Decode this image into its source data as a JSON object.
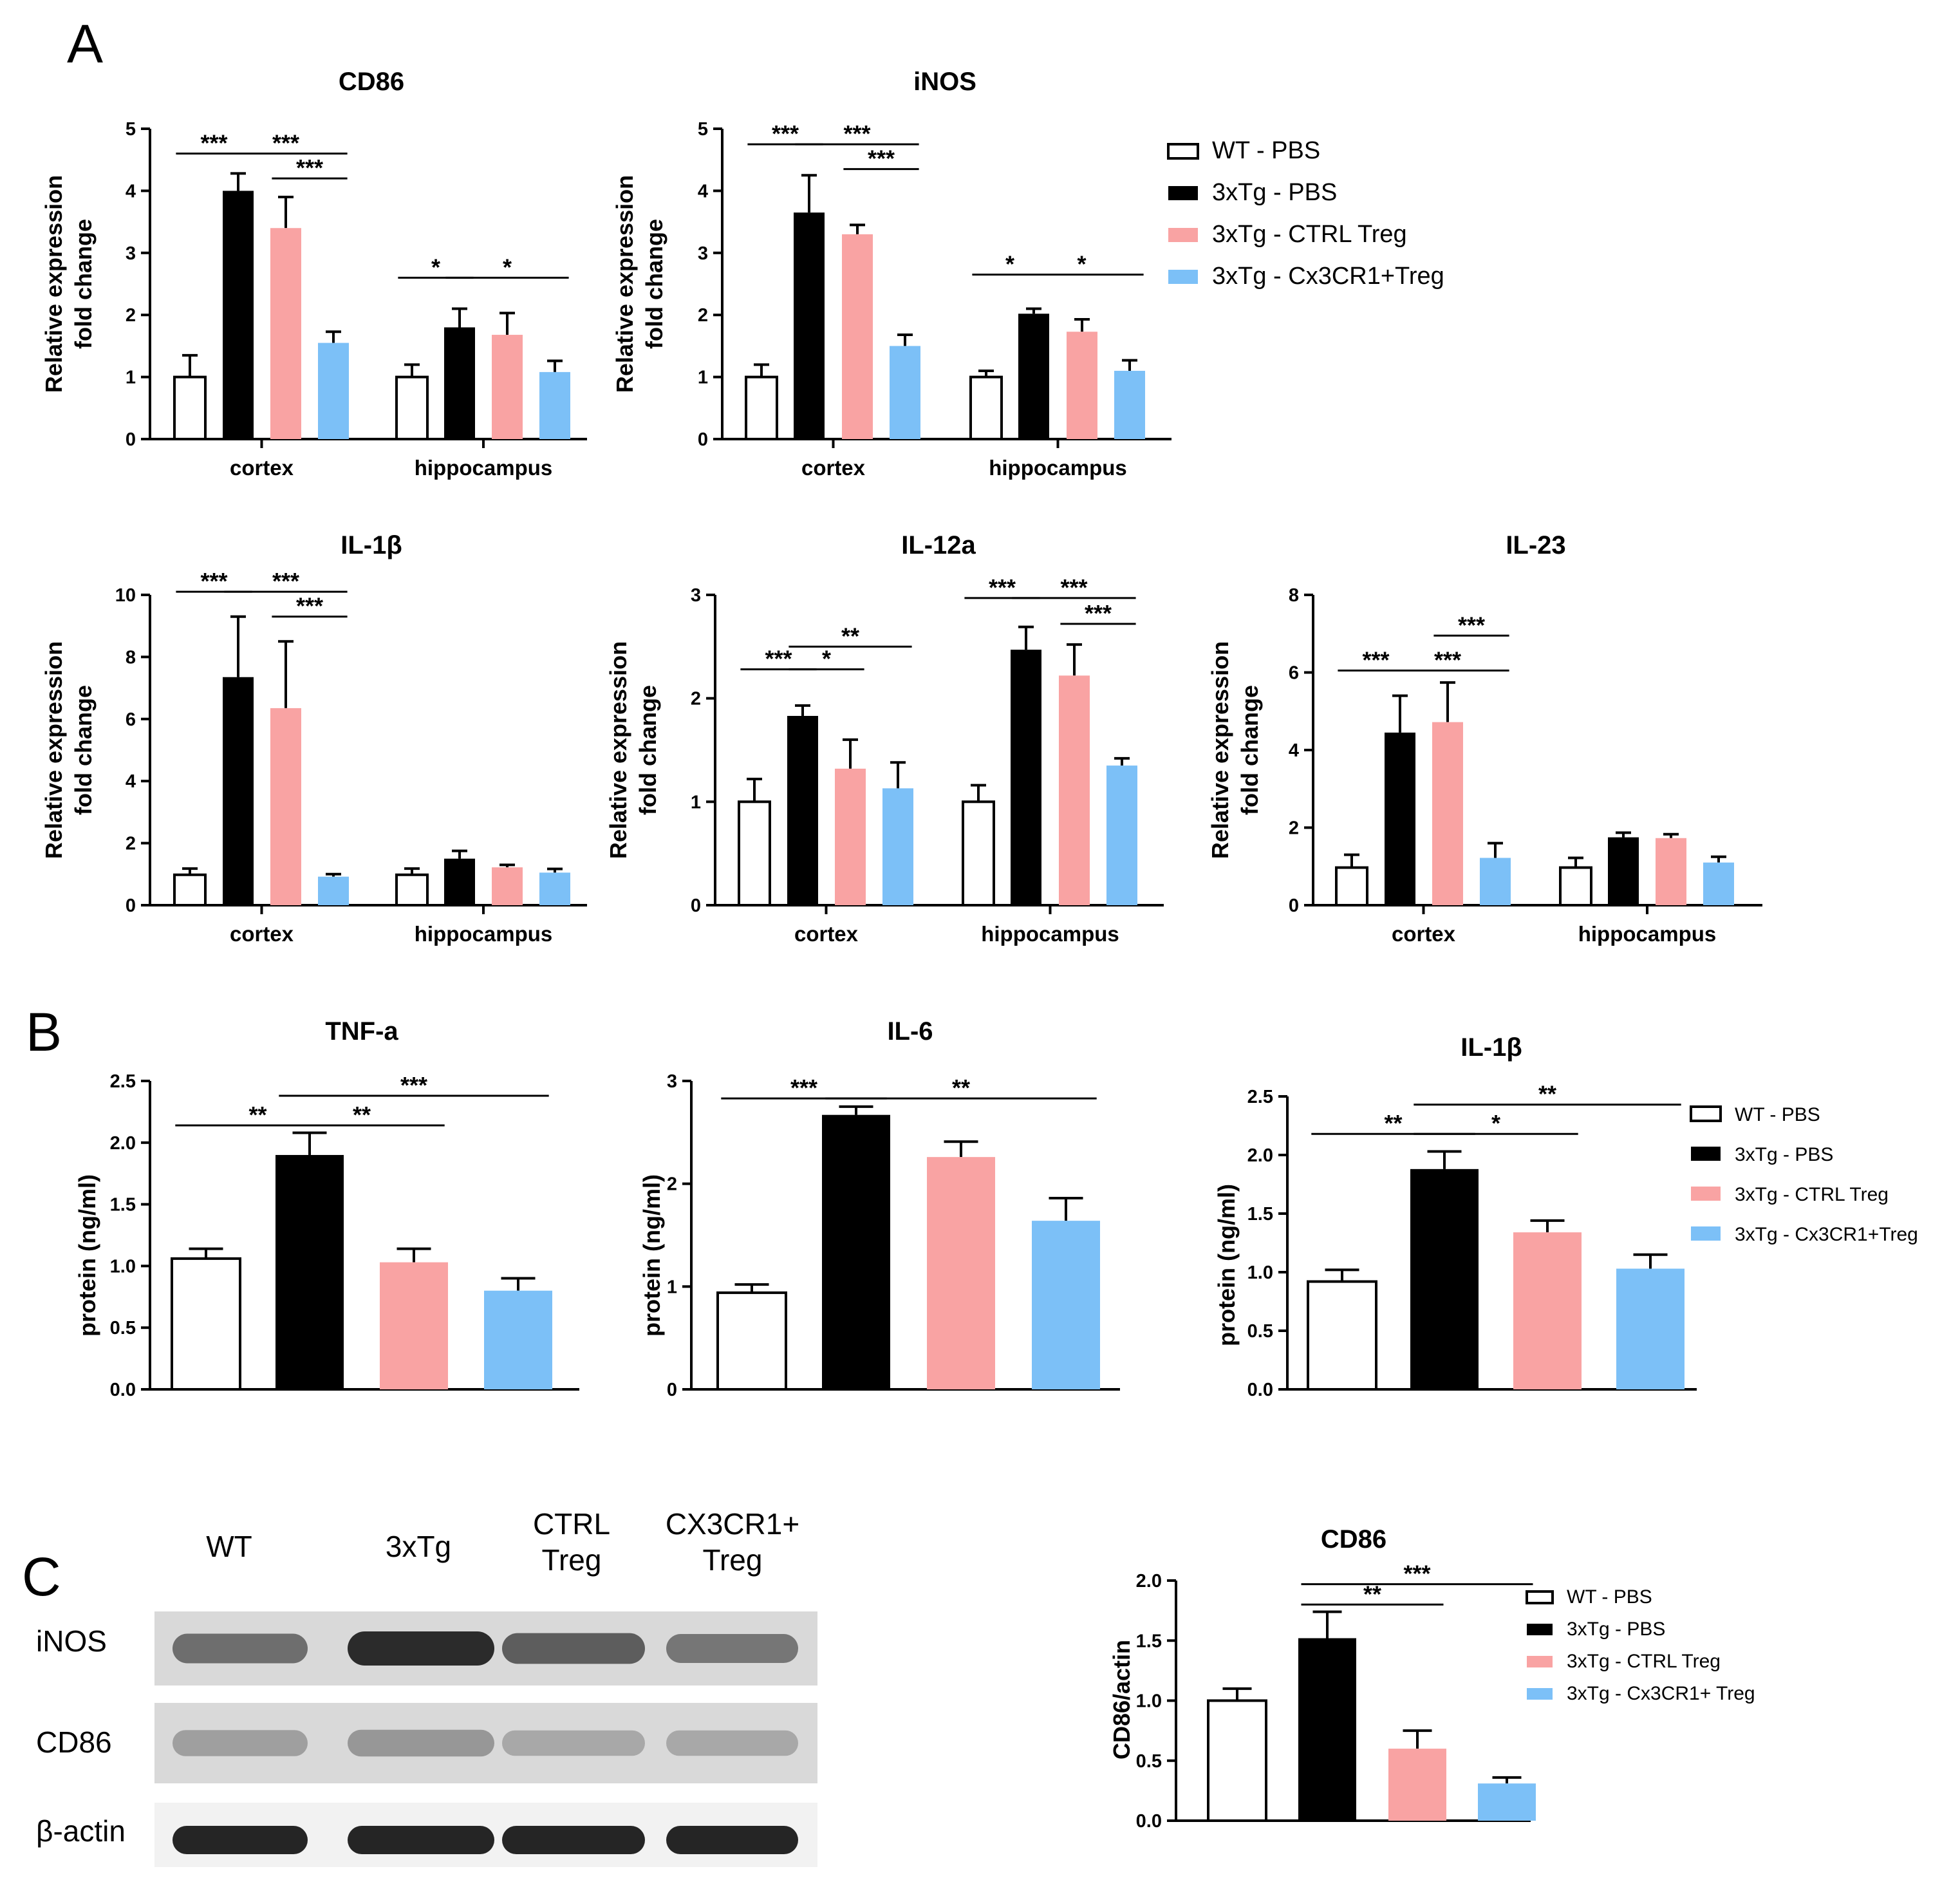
{
  "panels": [
    "A",
    "B",
    "C"
  ],
  "legend": {
    "entries": [
      "WT - PBS",
      "3xTg - PBS",
      "3xTg - CTRL Treg",
      "3xTg - Cx3CR1+Treg"
    ],
    "entries_c": [
      "WT - PBS",
      "3xTg - PBS",
      "3xTg - CTRL Treg",
      "3xTg - Cx3CR1+ Treg"
    ],
    "colors": [
      "#ffffff",
      "#000000",
      "#f9a3a3",
      "#7cc0f7"
    ]
  },
  "blot": {
    "lanes": [
      [
        "WT"
      ],
      [
        "3xTg"
      ],
      [
        "CTRL",
        "Treg"
      ],
      [
        "CX3CR1+",
        "Treg"
      ]
    ],
    "rows": [
      "iNOS",
      "CD86",
      "β-actin"
    ],
    "intensity": [
      [
        0.55,
        0.95,
        0.65,
        0.5
      ],
      [
        0.25,
        0.3,
        0.2,
        0.2
      ],
      [
        1.0,
        1.0,
        1.0,
        1.0
      ]
    ]
  },
  "chart_data": [
    {
      "id": "A_CD86",
      "type": "bar",
      "title": "CD86",
      "ylabel": [
        "Relative expression",
        "fold change"
      ],
      "ylim": [
        0,
        5
      ],
      "yticks": [
        "0",
        "1",
        "2",
        "3",
        "4",
        "5"
      ],
      "categories": [
        "cortex",
        "hippocampus"
      ],
      "series": [
        {
          "name": "WT - PBS",
          "values": [
            1.0,
            1.0
          ],
          "errors": [
            0.35,
            0.2
          ]
        },
        {
          "name": "3xTg - PBS",
          "values": [
            4.0,
            1.8
          ],
          "errors": [
            0.28,
            0.3
          ]
        },
        {
          "name": "3xTg - CTRL Treg",
          "values": [
            3.4,
            1.68
          ],
          "errors": [
            0.5,
            0.35
          ]
        },
        {
          "name": "3xTg - Cx3CR1+Treg",
          "values": [
            1.55,
            1.08
          ],
          "errors": [
            0.18,
            0.18
          ]
        }
      ],
      "significance": [
        {
          "g": 0,
          "a": 0,
          "b": 1,
          "y": 4.6,
          "label": "***"
        },
        {
          "g": 0,
          "a": 1,
          "b": 3,
          "y": 4.6,
          "label": "***"
        },
        {
          "g": 0,
          "a": 2,
          "b": 3,
          "y": 4.2,
          "label": "***"
        },
        {
          "g": 1,
          "a": 0,
          "b": 1,
          "y": 2.6,
          "label": "*"
        },
        {
          "g": 1,
          "a": 1,
          "b": 3,
          "y": 2.6,
          "label": "*"
        }
      ]
    },
    {
      "id": "A_iNOS",
      "type": "bar",
      "title": "iNOS",
      "ylabel": [
        "Relative expression",
        "fold change"
      ],
      "ylim": [
        0,
        5
      ],
      "yticks": [
        "0",
        "1",
        "2",
        "3",
        "4",
        "5"
      ],
      "categories": [
        "cortex",
        "hippocampus"
      ],
      "series": [
        {
          "name": "WT - PBS",
          "values": [
            1.0,
            1.0
          ],
          "errors": [
            0.2,
            0.1
          ]
        },
        {
          "name": "3xTg - PBS",
          "values": [
            3.65,
            2.02
          ],
          "errors": [
            0.6,
            0.08
          ]
        },
        {
          "name": "3xTg - CTRL Treg",
          "values": [
            3.3,
            1.73
          ],
          "errors": [
            0.15,
            0.2
          ]
        },
        {
          "name": "3xTg - Cx3CR1+Treg",
          "values": [
            1.5,
            1.1
          ],
          "errors": [
            0.18,
            0.17
          ]
        }
      ],
      "significance": [
        {
          "g": 0,
          "a": 0,
          "b": 1,
          "y": 4.75,
          "label": "***"
        },
        {
          "g": 0,
          "a": 1,
          "b": 3,
          "y": 4.75,
          "label": "***"
        },
        {
          "g": 0,
          "a": 2,
          "b": 3,
          "y": 4.35,
          "label": "***"
        },
        {
          "g": 1,
          "a": 0,
          "b": 1,
          "y": 2.65,
          "label": "*"
        },
        {
          "g": 1,
          "a": 1,
          "b": 3,
          "y": 2.65,
          "label": "*"
        }
      ]
    },
    {
      "id": "A_IL1b",
      "type": "bar",
      "title": "IL-1β",
      "ylabel": [
        "Relative expression",
        "fold change"
      ],
      "ylim": [
        0,
        10
      ],
      "yticks": [
        "0",
        "2",
        "4",
        "6",
        "8",
        "10"
      ],
      "categories": [
        "cortex",
        "hippocampus"
      ],
      "series": [
        {
          "name": "WT - PBS",
          "values": [
            0.98,
            0.98
          ],
          "errors": [
            0.2,
            0.2
          ]
        },
        {
          "name": "3xTg - PBS",
          "values": [
            7.35,
            1.5
          ],
          "errors": [
            1.95,
            0.25
          ]
        },
        {
          "name": "3xTg - CTRL Treg",
          "values": [
            6.35,
            1.22
          ],
          "errors": [
            2.15,
            0.08
          ]
        },
        {
          "name": "3xTg - Cx3CR1+Treg",
          "values": [
            0.92,
            1.05
          ],
          "errors": [
            0.08,
            0.12
          ]
        }
      ],
      "significance": [
        {
          "g": 0,
          "a": 0,
          "b": 1,
          "y": 10.1,
          "label": "***"
        },
        {
          "g": 0,
          "a": 1,
          "b": 3,
          "y": 10.1,
          "label": "***"
        },
        {
          "g": 0,
          "a": 2,
          "b": 3,
          "y": 9.3,
          "label": "***"
        }
      ]
    },
    {
      "id": "A_IL12a",
      "type": "bar",
      "title": "IL-12a",
      "ylabel": [
        "Relative expression",
        "fold change"
      ],
      "ylim": [
        0,
        3
      ],
      "yticks": [
        "0",
        "1",
        "2",
        "3"
      ],
      "categories": [
        "cortex",
        "hippocampus"
      ],
      "series": [
        {
          "name": "WT - PBS",
          "values": [
            1.0,
            1.0
          ],
          "errors": [
            0.22,
            0.16
          ]
        },
        {
          "name": "3xTg - PBS",
          "values": [
            1.83,
            2.47
          ],
          "errors": [
            0.1,
            0.22
          ]
        },
        {
          "name": "3xTg - CTRL Treg",
          "values": [
            1.32,
            2.22
          ],
          "errors": [
            0.28,
            0.3
          ]
        },
        {
          "name": "3xTg - Cx3CR1+Treg",
          "values": [
            1.13,
            1.35
          ],
          "errors": [
            0.25,
            0.07
          ]
        }
      ],
      "significance": [
        {
          "g": 0,
          "a": 0,
          "b": 1,
          "y": 2.28,
          "label": "***"
        },
        {
          "g": 0,
          "a": 1,
          "b": 2,
          "y": 2.28,
          "label": "*"
        },
        {
          "g": 0,
          "a": 1,
          "b": 3,
          "y": 2.5,
          "label": "**"
        },
        {
          "g": 1,
          "a": 0,
          "b": 1,
          "y": 2.97,
          "label": "***"
        },
        {
          "g": 1,
          "a": 1,
          "b": 3,
          "y": 2.97,
          "label": "***"
        },
        {
          "g": 1,
          "a": 2,
          "b": 3,
          "y": 2.72,
          "label": "***"
        }
      ]
    },
    {
      "id": "A_IL23",
      "type": "bar",
      "title": "IL-23",
      "ylabel": [
        "Relative expression",
        "fold change"
      ],
      "ylim": [
        0,
        8
      ],
      "yticks": [
        "0",
        "2",
        "4",
        "6",
        "8"
      ],
      "categories": [
        "cortex",
        "hippocampus"
      ],
      "series": [
        {
          "name": "WT - PBS",
          "values": [
            0.97,
            0.97
          ],
          "errors": [
            0.33,
            0.25
          ]
        },
        {
          "name": "3xTg - PBS",
          "values": [
            4.45,
            1.75
          ],
          "errors": [
            0.95,
            0.12
          ]
        },
        {
          "name": "3xTg - CTRL Treg",
          "values": [
            4.72,
            1.73
          ],
          "errors": [
            1.02,
            0.1
          ]
        },
        {
          "name": "3xTg - Cx3CR1+Treg",
          "values": [
            1.22,
            1.1
          ],
          "errors": [
            0.38,
            0.15
          ]
        }
      ],
      "significance": [
        {
          "g": 0,
          "a": 0,
          "b": 1,
          "y": 6.05,
          "label": "***"
        },
        {
          "g": 0,
          "a": 1,
          "b": 3,
          "y": 6.05,
          "label": "***"
        },
        {
          "g": 0,
          "a": 2,
          "b": 3,
          "y": 6.95,
          "label": "***"
        }
      ]
    },
    {
      "id": "B_TNFa",
      "type": "bar",
      "title": "TNF-a",
      "ylabel": [
        "protein (ng/ml)"
      ],
      "ylim": [
        0,
        2.5
      ],
      "yticks": [
        "0.0",
        "0.5",
        "1.0",
        "1.5",
        "2.0",
        "2.5"
      ],
      "categories": [
        ""
      ],
      "series": [
        {
          "name": "WT - PBS",
          "values": [
            1.06
          ],
          "errors": [
            0.08
          ]
        },
        {
          "name": "3xTg - PBS",
          "values": [
            1.9
          ],
          "errors": [
            0.18
          ]
        },
        {
          "name": "3xTg - CTRL Treg",
          "values": [
            1.03
          ],
          "errors": [
            0.11
          ]
        },
        {
          "name": "3xTg - Cx3CR1+Treg",
          "values": [
            0.8
          ],
          "errors": [
            0.1
          ]
        }
      ],
      "significance": [
        {
          "g": 0,
          "a": 0,
          "b": 1,
          "y": 2.14,
          "label": "**"
        },
        {
          "g": 0,
          "a": 1,
          "b": 2,
          "y": 2.14,
          "label": "**"
        },
        {
          "g": 0,
          "a": 1,
          "b": 3,
          "y": 2.38,
          "label": "***"
        }
      ]
    },
    {
      "id": "B_IL6",
      "type": "bar",
      "title": "IL-6",
      "ylabel": [
        "protein (ng/ml)"
      ],
      "ylim": [
        0,
        3
      ],
      "yticks": [
        "0",
        "1",
        "2",
        "3"
      ],
      "categories": [
        ""
      ],
      "series": [
        {
          "name": "WT - PBS",
          "values": [
            0.94
          ],
          "errors": [
            0.08
          ]
        },
        {
          "name": "3xTg - PBS",
          "values": [
            2.67
          ],
          "errors": [
            0.08
          ]
        },
        {
          "name": "3xTg - CTRL Treg",
          "values": [
            2.26
          ],
          "errors": [
            0.15
          ]
        },
        {
          "name": "3xTg - Cx3CR1+Treg",
          "values": [
            1.64
          ],
          "errors": [
            0.22
          ]
        }
      ],
      "significance": [
        {
          "g": 0,
          "a": 0,
          "b": 1,
          "y": 2.83,
          "label": "***"
        },
        {
          "g": 0,
          "a": 1,
          "b": 3,
          "y": 2.83,
          "label": "**"
        }
      ]
    },
    {
      "id": "B_IL1b",
      "type": "bar",
      "title": "IL-1β",
      "ylabel": [
        "protein (ng/ml)"
      ],
      "ylim": [
        0,
        2.5
      ],
      "yticks": [
        "0.0",
        "0.5",
        "1.0",
        "1.5",
        "2.0",
        "2.5"
      ],
      "categories": [
        ""
      ],
      "series": [
        {
          "name": "WT - PBS",
          "values": [
            0.92
          ],
          "errors": [
            0.1
          ]
        },
        {
          "name": "3xTg - PBS",
          "values": [
            1.88
          ],
          "errors": [
            0.15
          ]
        },
        {
          "name": "3xTg - CTRL Treg",
          "values": [
            1.34
          ],
          "errors": [
            0.1
          ]
        },
        {
          "name": "3xTg - Cx3CR1+Treg",
          "values": [
            1.03
          ],
          "errors": [
            0.12
          ]
        }
      ],
      "significance": [
        {
          "g": 0,
          "a": 0,
          "b": 1,
          "y": 2.18,
          "label": "**"
        },
        {
          "g": 0,
          "a": 1,
          "b": 2,
          "y": 2.18,
          "label": "*"
        },
        {
          "g": 0,
          "a": 1,
          "b": 3,
          "y": 2.43,
          "label": "**"
        }
      ]
    },
    {
      "id": "C_CD86",
      "type": "bar",
      "title": "CD86",
      "ylabel": [
        "CD86/actin"
      ],
      "ylim": [
        0,
        2
      ],
      "yticks": [
        "0.0",
        "0.5",
        "1.0",
        "1.5",
        "2.0"
      ],
      "categories": [
        ""
      ],
      "series": [
        {
          "name": "WT - PBS",
          "values": [
            1.0
          ],
          "errors": [
            0.1
          ]
        },
        {
          "name": "3xTg - PBS",
          "values": [
            1.52
          ],
          "errors": [
            0.22
          ]
        },
        {
          "name": "3xTg - CTRL Treg",
          "values": [
            0.6
          ],
          "errors": [
            0.15
          ]
        },
        {
          "name": "3xTg - Cx3CR1+ Treg",
          "values": [
            0.31
          ],
          "errors": [
            0.05
          ]
        }
      ],
      "significance": [
        {
          "g": 0,
          "a": 1,
          "b": 2,
          "y": 1.8,
          "label": "**"
        },
        {
          "g": 0,
          "a": 1,
          "b": 3,
          "y": 1.97,
          "label": "***"
        }
      ]
    }
  ]
}
